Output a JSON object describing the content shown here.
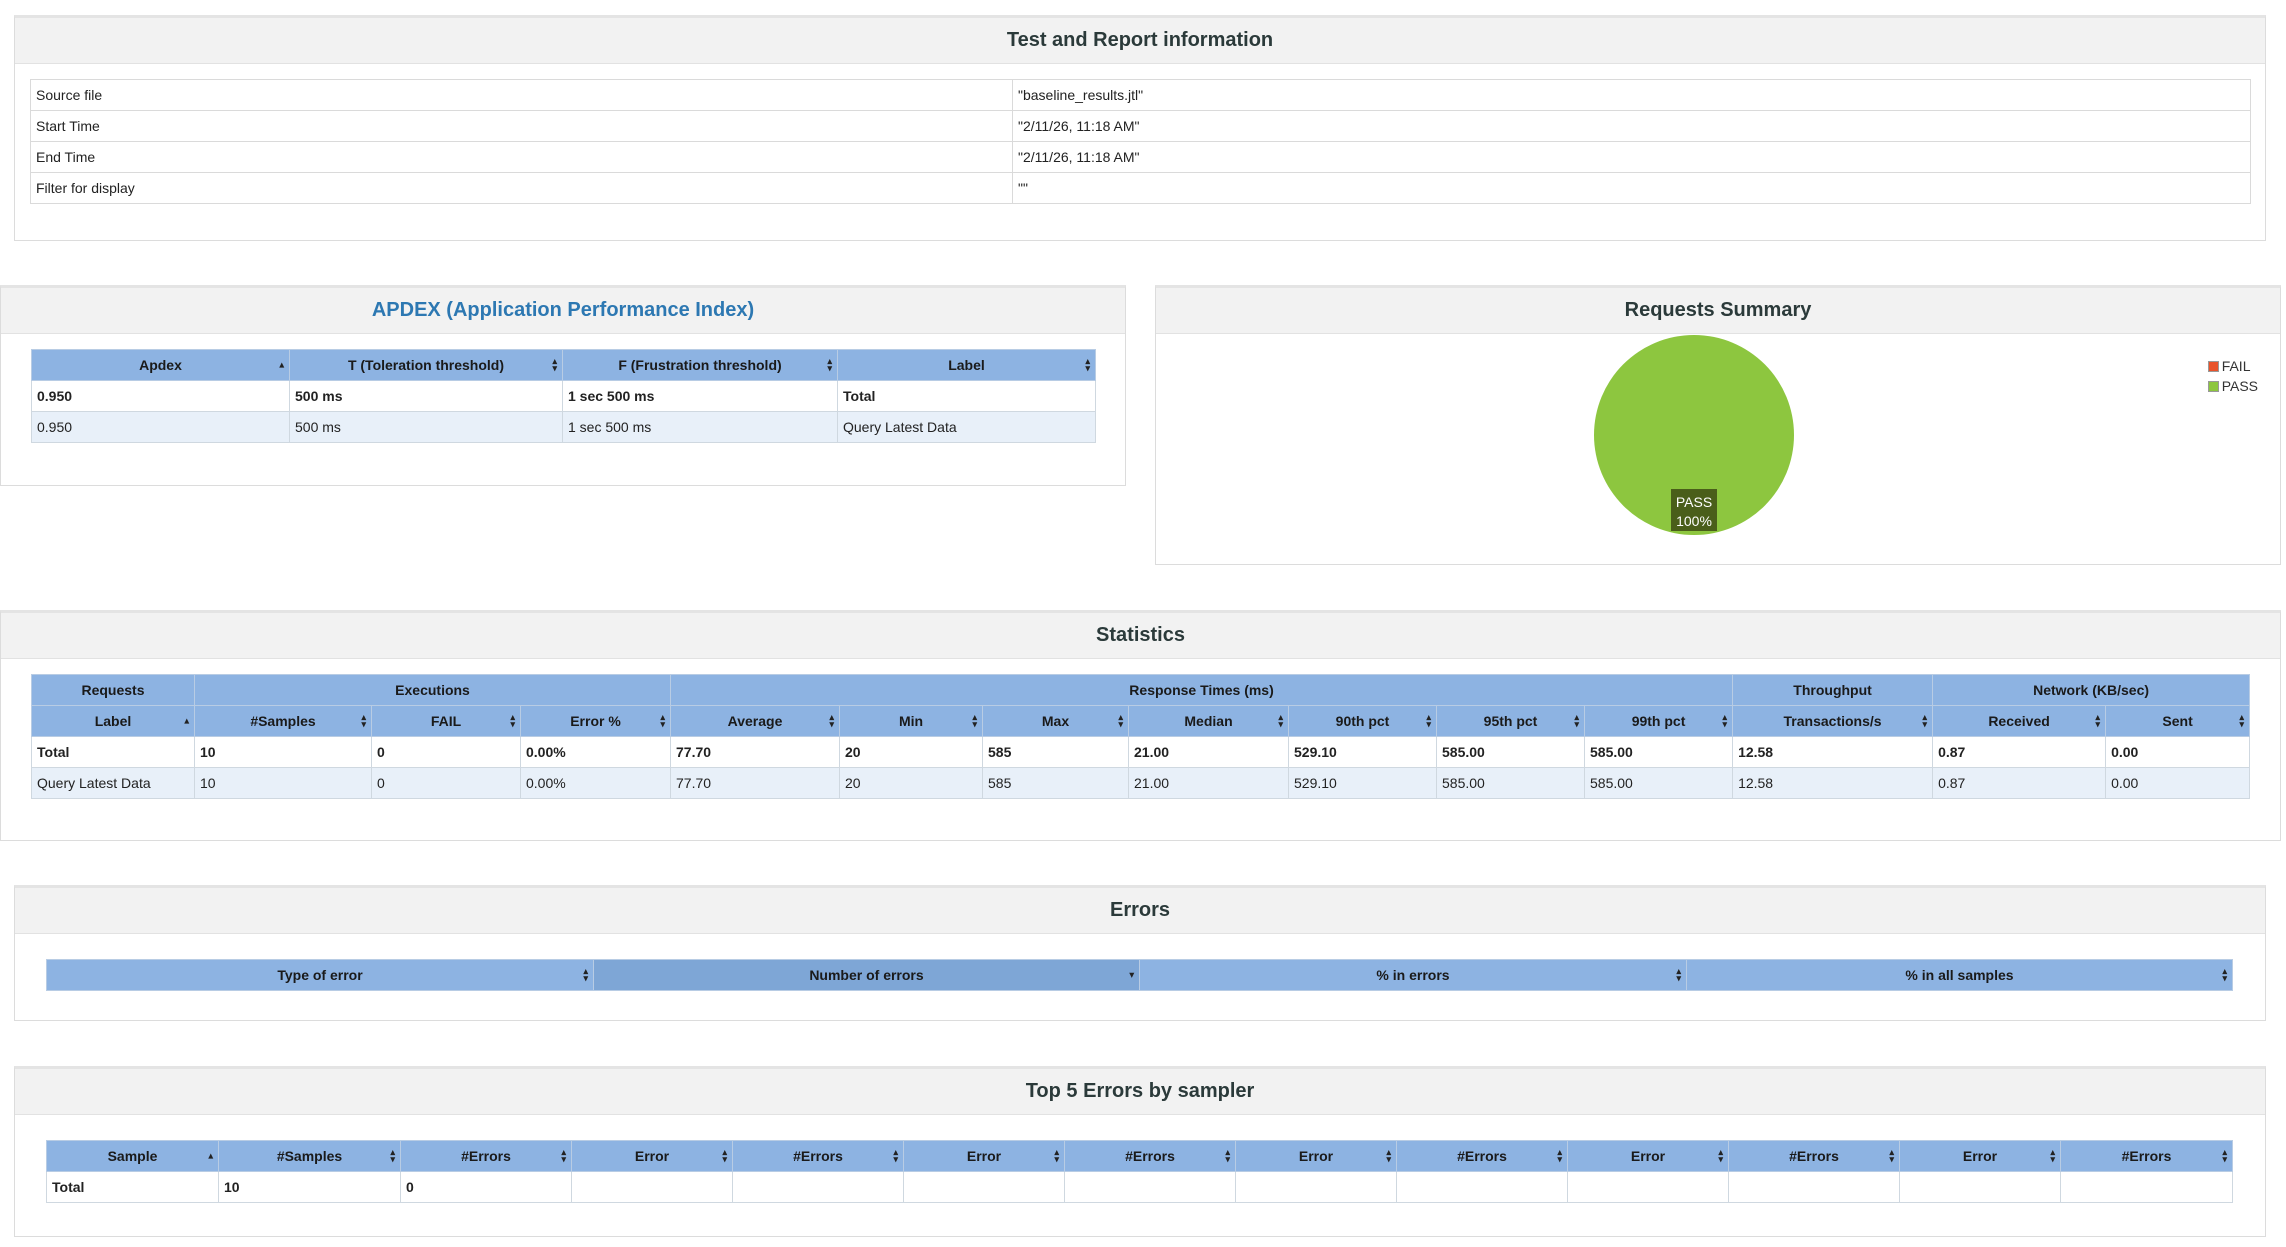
{
  "info": {
    "title": "Test and Report information",
    "rows": [
      {
        "label": "Source file",
        "value": "\"baseline_results.jtl\""
      },
      {
        "label": "Start Time",
        "value": "\"2/11/26, 11:18 AM\""
      },
      {
        "label": "End Time",
        "value": "\"2/11/26, 11:18 AM\""
      },
      {
        "label": "Filter for display",
        "value": "\"\""
      }
    ]
  },
  "apdex": {
    "title": "APDEX (Application Performance Index)",
    "headers": [
      "Apdex",
      "T (Toleration threshold)",
      "F (Frustration threshold)",
      "Label"
    ],
    "rows": [
      [
        "0.950",
        "500 ms",
        "1 sec 500 ms",
        "Total"
      ],
      [
        "0.950",
        "500 ms",
        "1 sec 500 ms",
        "Query Latest Data"
      ]
    ]
  },
  "summary": {
    "title": "Requests Summary",
    "legend": [
      {
        "label": "FAIL",
        "color": "#e8532b"
      },
      {
        "label": "PASS",
        "color": "#8dc63f"
      }
    ],
    "pie_label_name": "PASS",
    "pie_label_pct": "100%",
    "pass_color": "#8dc63f"
  },
  "chart_data": {
    "type": "pie",
    "categories": [
      "FAIL",
      "PASS"
    ],
    "values": [
      0,
      100
    ],
    "title": "Requests Summary"
  },
  "statistics": {
    "title": "Statistics",
    "groups": [
      "Requests",
      "Executions",
      "Response Times (ms)",
      "Throughput",
      "Network (KB/sec)"
    ],
    "headers": [
      "Label",
      "#Samples",
      "FAIL",
      "Error %",
      "Average",
      "Min",
      "Max",
      "Median",
      "90th pct",
      "95th pct",
      "99th pct",
      "Transactions/s",
      "Received",
      "Sent"
    ],
    "rows": [
      [
        "Total",
        "10",
        "0",
        "0.00%",
        "77.70",
        "20",
        "585",
        "21.00",
        "529.10",
        "585.00",
        "585.00",
        "12.58",
        "0.87",
        "0.00"
      ],
      [
        "Query Latest Data",
        "10",
        "0",
        "0.00%",
        "77.70",
        "20",
        "585",
        "21.00",
        "529.10",
        "585.00",
        "585.00",
        "12.58",
        "0.87",
        "0.00"
      ]
    ]
  },
  "errors": {
    "title": "Errors",
    "headers": [
      "Type of error",
      "Number of errors",
      "% in errors",
      "% in all samples"
    ]
  },
  "top5": {
    "title": "Top 5 Errors by sampler",
    "headers": [
      "Sample",
      "#Samples",
      "#Errors",
      "Error",
      "#Errors",
      "Error",
      "#Errors",
      "Error",
      "#Errors",
      "Error",
      "#Errors",
      "Error",
      "#Errors"
    ],
    "rows": [
      [
        "Total",
        "10",
        "0",
        "",
        "",
        "",
        "",
        "",
        "",
        "",
        "",
        "",
        ""
      ]
    ]
  }
}
